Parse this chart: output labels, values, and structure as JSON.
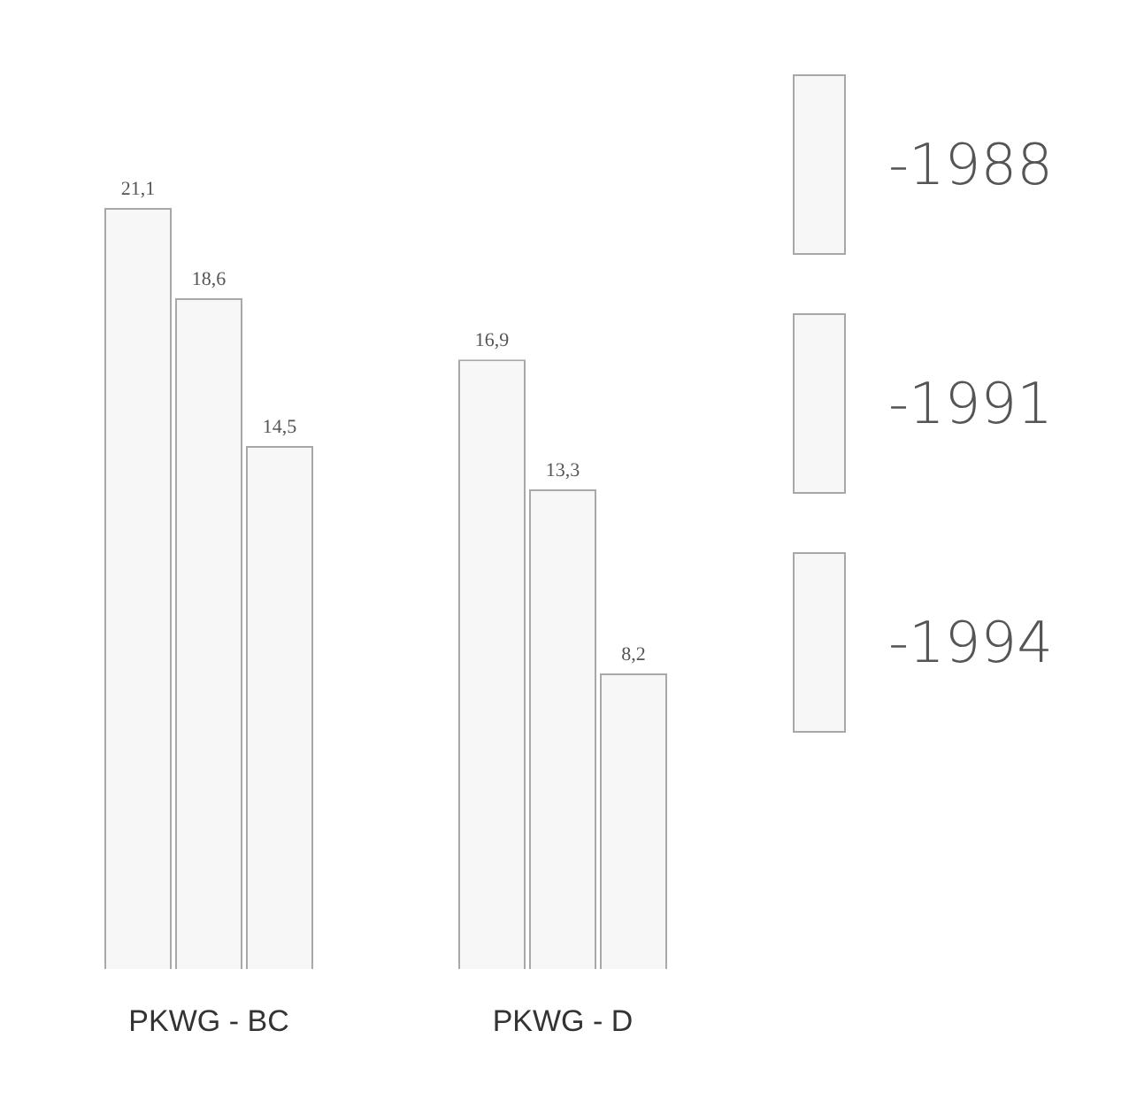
{
  "chart_data": {
    "type": "bar",
    "categories": [
      "PKWG - BC",
      "PKWG - D"
    ],
    "series": [
      {
        "name": "-1988",
        "color": "#f7f7f7",
        "values": [
          21.1,
          16.9
        ],
        "value_labels": [
          "21,1",
          "16,9"
        ]
      },
      {
        "name": "-1991",
        "color": "#f7f7f7",
        "values": [
          18.6,
          13.3
        ],
        "value_labels": [
          "18,6",
          "13,3"
        ]
      },
      {
        "name": "-1994",
        "color": "#f7f7f7",
        "values": [
          14.5,
          8.2
        ],
        "value_labels": [
          "14,5",
          "8,2"
        ]
      }
    ],
    "legend": "right",
    "grid": false,
    "tick_labels": "x"
  }
}
